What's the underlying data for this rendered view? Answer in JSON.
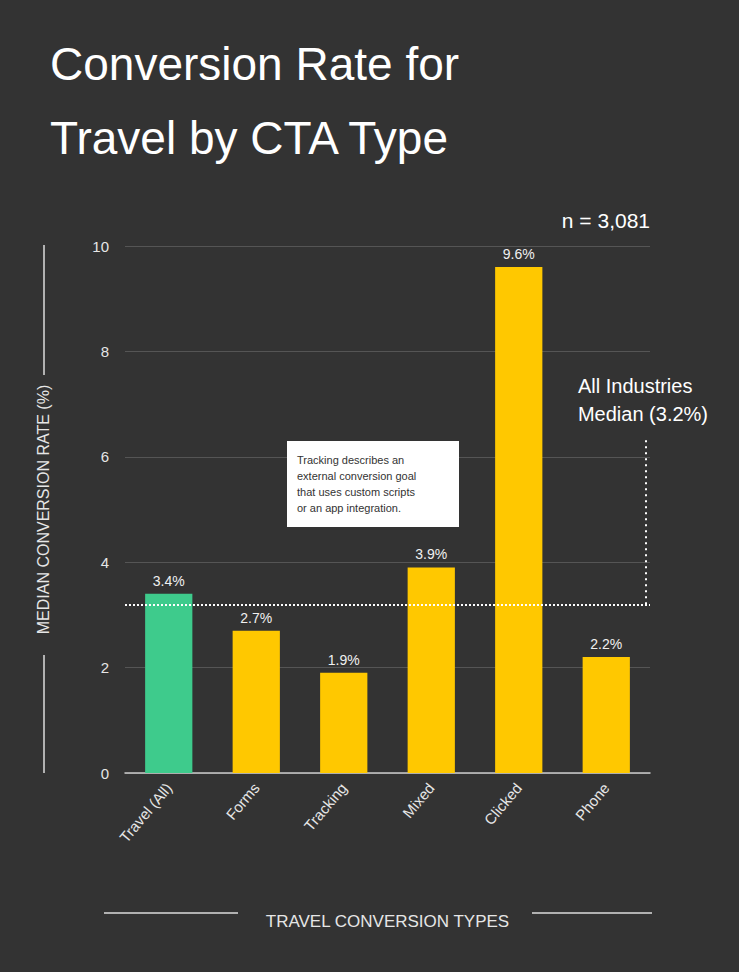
{
  "chart_data": {
    "type": "bar",
    "title": "Conversion Rate for Travel by CTA Type",
    "sample_size": "n = 3,081",
    "x_label": "TRAVEL CONVERSION TYPES",
    "y_label": "MEDIAN CONVERSION RATE (%)",
    "categories": [
      "Travel (All)",
      "Forms",
      "Tracking",
      "Mixed",
      "Clicked",
      "Phone"
    ],
    "values": [
      3.4,
      2.7,
      1.9,
      3.9,
      9.6,
      2.2
    ],
    "value_labels": [
      "3.4%",
      "2.7%",
      "1.9%",
      "3.9%",
      "9.6%",
      "2.2%"
    ],
    "colors": [
      "#3ecb8c",
      "#ffc800",
      "#ffc800",
      "#ffc800",
      "#ffc800",
      "#ffc800"
    ],
    "ylim": [
      0,
      10
    ],
    "yticks": [
      0,
      2,
      4,
      6,
      8,
      10
    ],
    "grid": true,
    "data_labels": true,
    "annotation": "Tracking describes an external conversion goal that uses custom scripts or an app integration.",
    "reference_line": {
      "value": 3.2,
      "label": "All Industries Median (3.2%)"
    }
  }
}
